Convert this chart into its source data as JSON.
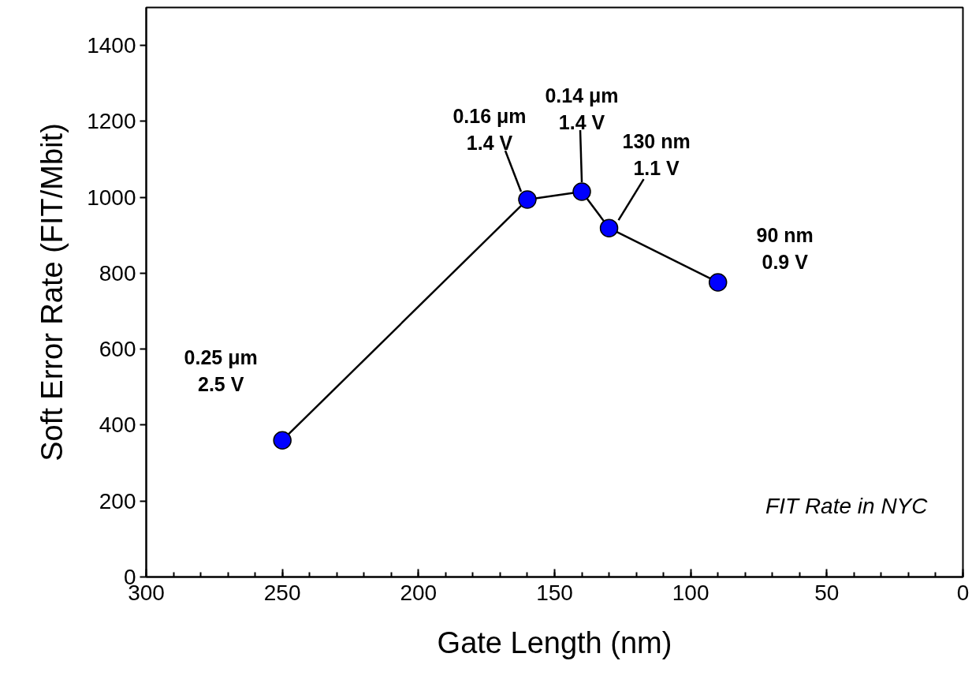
{
  "chart_data": {
    "type": "line",
    "xlabel": "Gate Length (nm)",
    "ylabel": "Soft Error Rate (FIT/Mbit)",
    "x": [
      250,
      160,
      140,
      130,
      90
    ],
    "series": [
      {
        "color": "#0000ff",
        "values": [
          360,
          994,
          1015,
          919,
          776
        ]
      }
    ],
    "marker": "circle",
    "line_style": "solid",
    "xlim": [
      300,
      0
    ],
    "xticks": [
      300,
      250,
      200,
      150,
      100,
      50,
      0
    ],
    "ylim": [
      0,
      1500
    ],
    "yticks": [
      0,
      200,
      400,
      600,
      800,
      1000,
      1200,
      1400
    ],
    "annotations": [
      {
        "text": "0.25 μm\n2.5 V",
        "x": 250,
        "y": 360
      },
      {
        "text": "0.16 μm\n1.4 V",
        "x": 160,
        "y": 994
      },
      {
        "text": "0.14 μm\n1.4 V",
        "x": 140,
        "y": 1015
      },
      {
        "text": "130 nm\n1.1 V",
        "x": 130,
        "y": 919
      },
      {
        "text": "90 nm\n0.9 V",
        "x": 90,
        "y": 776
      },
      "FIT Rate in NYC"
    ]
  }
}
